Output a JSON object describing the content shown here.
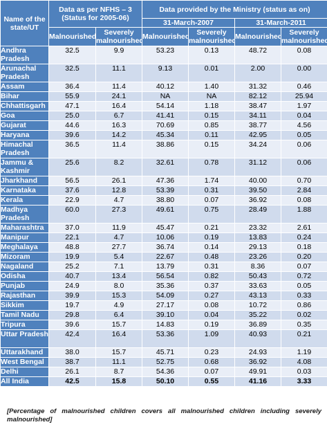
{
  "header": {
    "state_col": "Name of the state/UT",
    "nfhs_group": "Data as per NFHS – 3 (Status for 2005-06)",
    "ministry_group": "Data provided by the Ministry (status as on)",
    "date_2007": "31-March-2007",
    "date_2011": "31-March-2011",
    "malnourished": "Malnourished",
    "severely": "Severely malnourished"
  },
  "rows": [
    {
      "state": "Andhra Pradesh",
      "v": [
        "32.5",
        "9.9",
        "53.23",
        "0.13",
        "48.72",
        "0.08"
      ]
    },
    {
      "state": "Arunachal Pradesh",
      "v": [
        "32.5",
        "11.1",
        "9.13",
        "0.01",
        "2.00",
        "0.00"
      ]
    },
    {
      "state": "Assam",
      "v": [
        "36.4",
        "11.4",
        "40.12",
        "1.40",
        "31.32",
        "0.46"
      ]
    },
    {
      "state": "Bihar",
      "v": [
        "55.9",
        "24.1",
        "NA",
        "NA",
        "82.12",
        "25.94"
      ]
    },
    {
      "state": "Chhattisgarh",
      "v": [
        "47.1",
        "16.4",
        "54.14",
        "1.18",
        "38.47",
        "1.97"
      ]
    },
    {
      "state": "Goa",
      "v": [
        "25.0",
        "6.7",
        "41.41",
        "0.15",
        "34.11",
        "0.04"
      ]
    },
    {
      "state": "Gujarat",
      "v": [
        "44.6",
        "16.3",
        "70.69",
        "0.85",
        "38.77",
        "4.56"
      ]
    },
    {
      "state": "Haryana",
      "v": [
        "39.6",
        "14.2",
        "45.34",
        "0.11",
        "42.95",
        "0.05"
      ]
    },
    {
      "state": "Himachal Pradesh",
      "v": [
        "36.5",
        "11.4",
        "38.86",
        "0.15",
        "34.24",
        "0.06"
      ]
    },
    {
      "state": "Jammu & Kashmir",
      "v": [
        "25.6",
        "8.2",
        "32.61",
        "0.78",
        "31.12",
        "0.06"
      ]
    },
    {
      "state": "Jharkhand",
      "v": [
        "56.5",
        "26.1",
        "47.36",
        "1.74",
        "40.00",
        "0.70"
      ]
    },
    {
      "state": "Karnataka",
      "v": [
        "37.6",
        "12.8",
        "53.39",
        "0.31",
        "39.50",
        "2.84"
      ]
    },
    {
      "state": "Kerala",
      "v": [
        "22.9",
        "4.7",
        "38.80",
        "0.07",
        "36.92",
        "0.08"
      ]
    },
    {
      "state": "Madhya Pradesh",
      "v": [
        "60.0",
        "27.3",
        "49.61",
        "0.75",
        "28.49",
        "1.88"
      ]
    },
    {
      "state": "Maharashtra",
      "v": [
        "37.0",
        "11.9",
        "45.47",
        "0.21",
        "23.32",
        "2.61"
      ]
    },
    {
      "state": "Manipur",
      "v": [
        "22.1",
        "4.7",
        "10.06",
        "0.19",
        "13.83",
        "0.24"
      ]
    },
    {
      "state": "Meghalaya",
      "v": [
        "48.8",
        "27.7",
        "36.74",
        "0.14",
        "29.13",
        "0.18"
      ]
    },
    {
      "state": "Mizoram",
      "v": [
        "19.9",
        "5.4",
        "22.67",
        "0.48",
        "23.26",
        "0.20"
      ]
    },
    {
      "state": "Nagaland",
      "v": [
        "25.2",
        "7.1",
        "13.79",
        "0.31",
        "8.36",
        "0.07"
      ]
    },
    {
      "state": "Odisha",
      "v": [
        "40.7",
        "13.4",
        "56.54",
        "0.82",
        "50.43",
        "0.72"
      ]
    },
    {
      "state": "Punjab",
      "v": [
        "24.9",
        "8.0",
        "35.36",
        "0.37",
        "33.63",
        "0.05"
      ]
    },
    {
      "state": "Rajasthan",
      "v": [
        "39.9",
        "15.3",
        "54.09",
        "0.27",
        "43.13",
        "0.33"
      ]
    },
    {
      "state": "Sikkim",
      "v": [
        "19.7",
        "4.9",
        "27.17",
        "0.08",
        "10.72",
        "0.86"
      ]
    },
    {
      "state": "Tamil Nadu",
      "v": [
        "29.8",
        "6.4",
        "39.10",
        "0.04",
        "35.22",
        "0.02"
      ]
    },
    {
      "state": "Tripura",
      "v": [
        "39.6",
        "15.7",
        "14.83",
        "0.19",
        "36.89",
        "0.35"
      ]
    },
    {
      "state": "Uttar Pradesh",
      "v": [
        "42.4",
        "16.4",
        "53.36",
        "1.09",
        "40.93",
        "0.21"
      ]
    },
    {
      "state": "Uttarakhand",
      "v": [
        "38.0",
        "15.7",
        "45.71",
        "0.23",
        "24.93",
        "1.19"
      ]
    },
    {
      "state": "West Bengal",
      "v": [
        "38.7",
        "11.1",
        "52.75",
        "0.68",
        "36.92",
        "4.08"
      ]
    },
    {
      "state": "Delhi",
      "v": [
        "26.1",
        "8.7",
        "54.36",
        "0.07",
        "49.91",
        "0.03"
      ]
    },
    {
      "state": "All India",
      "v": [
        "42.5",
        "15.8",
        "50.10",
        "0.55",
        "41.16",
        "3.33"
      ]
    }
  ],
  "note": "[Percentage of malnourished children covers all malnourished children including severely malnourished]"
}
